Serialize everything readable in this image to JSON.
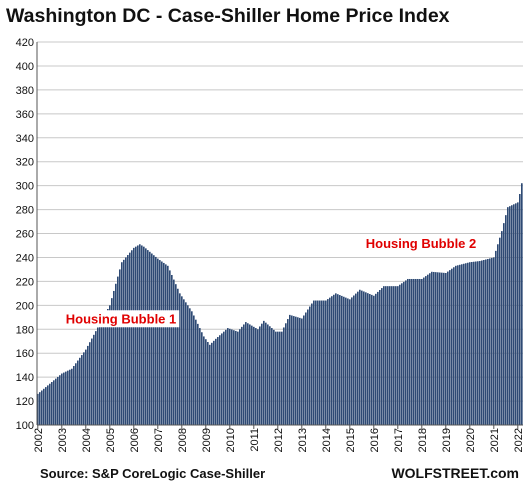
{
  "chart_data": {
    "type": "bar",
    "title": "Washington DC - Case-Shiller Home Price Index",
    "xlabel": "",
    "ylabel": "",
    "ylim": [
      100,
      420
    ],
    "yticks": [
      100,
      120,
      140,
      160,
      180,
      200,
      220,
      240,
      260,
      280,
      300,
      320,
      340,
      360,
      380,
      400,
      420
    ],
    "xticks": [
      "2002",
      "2003",
      "2004",
      "2005",
      "2006",
      "2007",
      "2008",
      "2009",
      "2010",
      "2011",
      "2012",
      "2013",
      "2014",
      "2015",
      "2016",
      "2017",
      "2018",
      "2019",
      "2020",
      "2021",
      "2022"
    ],
    "grid": true,
    "bar_color": "#2e4a74",
    "x_start": "2002-01",
    "x_end": "2022-03",
    "frequency": "monthly",
    "series_keypoints": [
      [
        "2002-01",
        126
      ],
      [
        "2003-01",
        143
      ],
      [
        "2003-06",
        147
      ],
      [
        "2004-01",
        163
      ],
      [
        "2005-01",
        200
      ],
      [
        "2005-07",
        236
      ],
      [
        "2006-01",
        248
      ],
      [
        "2006-04",
        251
      ],
      [
        "2006-06",
        249
      ],
      [
        "2007-01",
        239
      ],
      [
        "2007-06",
        233
      ],
      [
        "2007-12",
        210
      ],
      [
        "2008-06",
        195
      ],
      [
        "2008-12",
        174
      ],
      [
        "2009-03",
        167
      ],
      [
        "2009-06",
        172
      ],
      [
        "2009-12",
        181
      ],
      [
        "2010-05",
        178
      ],
      [
        "2010-09",
        186
      ],
      [
        "2011-03",
        180
      ],
      [
        "2011-06",
        187
      ],
      [
        "2011-12",
        178
      ],
      [
        "2012-03",
        178
      ],
      [
        "2012-07",
        192
      ],
      [
        "2013-01",
        189
      ],
      [
        "2013-07",
        204
      ],
      [
        "2014-01",
        204
      ],
      [
        "2014-06",
        210
      ],
      [
        "2015-01",
        205
      ],
      [
        "2015-06",
        213
      ],
      [
        "2016-01",
        208
      ],
      [
        "2016-06",
        216
      ],
      [
        "2017-01",
        216
      ],
      [
        "2017-06",
        222
      ],
      [
        "2018-01",
        222
      ],
      [
        "2018-06",
        228
      ],
      [
        "2019-01",
        227
      ],
      [
        "2019-06",
        233
      ],
      [
        "2020-01",
        236
      ],
      [
        "2020-06",
        237
      ],
      [
        "2021-01",
        240
      ],
      [
        "2021-05",
        262
      ],
      [
        "2021-08",
        282
      ],
      [
        "2022-01",
        286
      ],
      [
        "2022-02",
        293
      ],
      [
        "2022-03",
        302
      ]
    ],
    "annotations": [
      {
        "text": "Housing Bubble 1",
        "x": "2005-07",
        "y": 185,
        "color": "#e00000"
      },
      {
        "text": "Housing Bubble 2",
        "x": "2018-01",
        "y": 248,
        "color": "#e00000"
      }
    ]
  },
  "source_text": "Source: S&P CoreLogic Case-Shiller",
  "brand_text": "WOLFSTREET.com"
}
